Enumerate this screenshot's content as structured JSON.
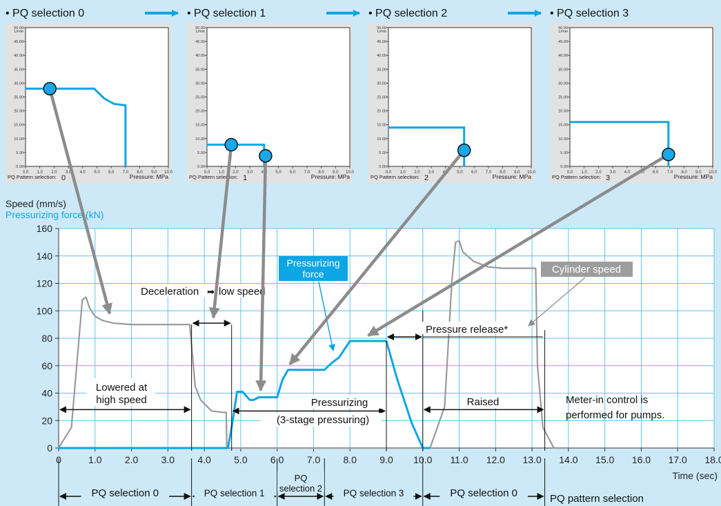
{
  "colors": {
    "background": "#cde9f8",
    "speed_line": "#9a9a9a",
    "force_line": "#0ea5e4",
    "grid": "#5fc4ea",
    "label_force": "#0ea5e4",
    "marker_fill": "#1aa8e8"
  },
  "panels": [
    {
      "heading": "• PQ selection 0",
      "pattern_label": "PQ Pattern selection:",
      "pattern_value": "0",
      "y_unit": "L/min",
      "x_unit": "Pressure: MPa",
      "curve": [
        [
          0.0,
          28.0
        ],
        [
          4.8,
          28.0
        ],
        [
          5.5,
          24.5
        ],
        [
          6.2,
          22.5
        ],
        [
          7.0,
          22.0
        ],
        [
          7.0,
          0.0
        ]
      ],
      "marker": [
        1.7,
        28.0
      ]
    },
    {
      "heading": "• PQ selection 1",
      "pattern_label": "PQ Pattern selection:",
      "pattern_value": "1",
      "y_unit": "L/min",
      "x_unit": "Pressure: MPa",
      "curve": [
        [
          0.0,
          7.8
        ],
        [
          4.0,
          7.8
        ],
        [
          4.0,
          0.0
        ]
      ],
      "marker": [
        1.7,
        7.8
      ],
      "marker2": [
        4.1,
        3.8
      ]
    },
    {
      "heading": "• PQ selection 2",
      "pattern_label": "PQ Pattern selection:",
      "pattern_value": "2",
      "y_unit": "L/min",
      "x_unit": "Pressure: MPa",
      "curve": [
        [
          0.0,
          14.0
        ],
        [
          5.3,
          14.0
        ],
        [
          5.3,
          0.0
        ]
      ],
      "marker": [
        5.3,
        5.8
      ]
    },
    {
      "heading": "• PQ selection 3",
      "pattern_label": "PQ Pattern selection:",
      "pattern_value": "3",
      "y_unit": "L/min",
      "x_unit": "Pressure: MPa",
      "curve": [
        [
          0.0,
          16.0
        ],
        [
          6.9,
          16.0
        ],
        [
          6.9,
          0.0
        ]
      ],
      "marker": [
        6.9,
        4.3
      ]
    }
  ],
  "mini_y_ticks": [
    "0.00",
    "5.00",
    "10.00",
    "15.00",
    "20.00",
    "25.00",
    "30.00",
    "35.00",
    "40.00",
    "45.00",
    "50.00"
  ],
  "mini_x_ticks": [
    "0.0",
    "1.0",
    "2.0",
    "3.0",
    "4.0",
    "5.0",
    "6.0",
    "7.0",
    "8.0",
    "9.0",
    "10.0"
  ],
  "chart_data": {
    "type": "line",
    "ylabel": "Speed (mm/s)",
    "ylabel2": "Pressurizing force (kN)",
    "xlabel": "Time (sec)",
    "xlim": [
      0,
      18
    ],
    "ylim": [
      0,
      160
    ],
    "x_ticks": [
      "0",
      "1.0",
      "2.0",
      "3.0",
      "4.0",
      "5.0",
      "6.0",
      "7.0",
      "8.0",
      "9.0",
      "10.0",
      "11.0",
      "12.0",
      "13.0",
      "14.0",
      "15.0",
      "16.0",
      "17.0",
      "18.0"
    ],
    "y_ticks": [
      "0",
      "20",
      "40",
      "60",
      "80",
      "100",
      "120",
      "140",
      "160"
    ],
    "grid": true,
    "series": [
      {
        "name": "Cylinder speed",
        "points": [
          [
            0,
            0
          ],
          [
            0.35,
            15
          ],
          [
            0.65,
            108
          ],
          [
            0.75,
            110
          ],
          [
            0.85,
            102
          ],
          [
            1.0,
            96
          ],
          [
            1.2,
            93
          ],
          [
            1.5,
            91
          ],
          [
            2.0,
            90
          ],
          [
            3.6,
            90
          ],
          [
            3.75,
            45
          ],
          [
            3.9,
            35
          ],
          [
            4.2,
            27
          ],
          [
            4.5,
            26
          ],
          [
            4.6,
            26
          ],
          [
            4.62,
            0
          ],
          [
            10.2,
            0
          ],
          [
            10.6,
            30
          ],
          [
            10.8,
            122
          ],
          [
            10.9,
            150
          ],
          [
            11.0,
            151
          ],
          [
            11.1,
            143
          ],
          [
            11.4,
            136
          ],
          [
            11.8,
            132
          ],
          [
            12.2,
            131
          ],
          [
            13.1,
            131
          ],
          [
            13.15,
            60
          ],
          [
            13.3,
            15
          ],
          [
            13.6,
            0
          ],
          [
            14.0,
            0
          ]
        ]
      },
      {
        "name": "Pressurizing force",
        "points": [
          [
            0,
            0
          ],
          [
            4.65,
            0
          ],
          [
            4.75,
            15
          ],
          [
            4.9,
            41
          ],
          [
            5.05,
            41
          ],
          [
            5.25,
            35
          ],
          [
            5.35,
            35
          ],
          [
            5.5,
            37
          ],
          [
            5.7,
            37
          ],
          [
            6.0,
            37
          ],
          [
            6.15,
            50
          ],
          [
            6.3,
            57
          ],
          [
            7.3,
            57
          ],
          [
            7.5,
            62
          ],
          [
            7.7,
            66
          ],
          [
            7.8,
            70
          ],
          [
            8.0,
            78
          ],
          [
            9.0,
            78
          ],
          [
            9.3,
            50
          ],
          [
            9.7,
            18
          ],
          [
            10.0,
            0
          ],
          [
            10.2,
            0
          ]
        ]
      }
    ],
    "annotations": {
      "deceleration": "Deceleration",
      "low_speed": "low speed",
      "lowered": [
        "Lowered at",
        "high speed"
      ],
      "pressurizing": [
        "Pressurizing",
        "(3-stage pressuring)"
      ],
      "pressure_release": "Pressure release*",
      "raised": "Raised",
      "meter_in": [
        "Meter-in control is",
        "performed for pumps."
      ],
      "force_callout": [
        "Pressurizing",
        "force"
      ],
      "speed_callout": "Cylinder speed"
    },
    "pattern_row": {
      "segments": [
        {
          "from": 0,
          "to": 3.65,
          "label": "PQ selection 0",
          "lines": 1
        },
        {
          "from": 3.65,
          "to": 6.0,
          "label": "PQ selection 1",
          "lines": 1
        },
        {
          "from": 6.0,
          "to": 7.3,
          "label": [
            "PQ",
            "selection 2"
          ],
          "lines": 2
        },
        {
          "from": 7.3,
          "to": 10.0,
          "label": "PQ selection 3",
          "lines": 1
        },
        {
          "from": 10.0,
          "to": 13.35,
          "label": "PQ selection 0",
          "lines": 1
        }
      ],
      "caption": "PQ pattern selection"
    }
  }
}
